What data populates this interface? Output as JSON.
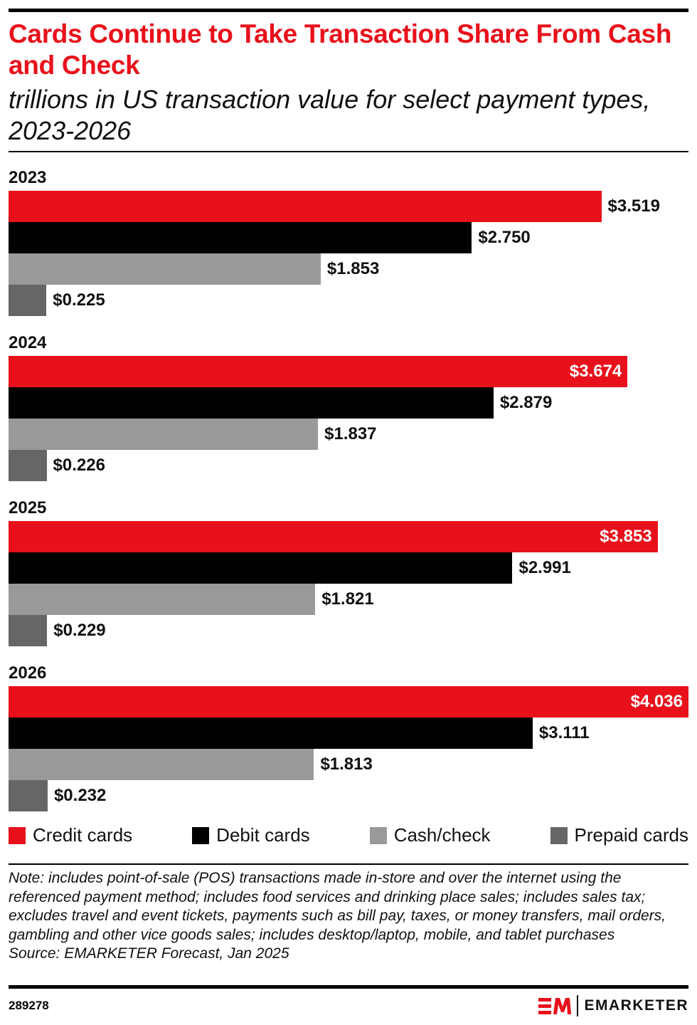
{
  "chart_data": {
    "type": "bar",
    "orientation": "horizontal",
    "title": "Cards Continue to Take Transaction Share From Cash and Check",
    "subtitle": "trillions in US transaction value for select payment types, 2023-2026",
    "categories": [
      "2023",
      "2024",
      "2025",
      "2026"
    ],
    "series": [
      {
        "name": "Credit cards",
        "color": "#e8111b",
        "values": [
          3.519,
          3.674,
          3.853,
          4.036
        ],
        "labels": [
          "$3.519",
          "$3.674",
          "$3.853",
          "$4.036"
        ]
      },
      {
        "name": "Debit cards",
        "color": "#000000",
        "values": [
          2.75,
          2.879,
          2.991,
          3.111
        ],
        "labels": [
          "$2.750",
          "$2.879",
          "$2.991",
          "$3.111"
        ]
      },
      {
        "name": "Cash/check",
        "color": "#999999",
        "values": [
          1.853,
          1.837,
          1.821,
          1.813
        ],
        "labels": [
          "$1.853",
          "$1.837",
          "$1.821",
          "$1.813"
        ]
      },
      {
        "name": "Prepaid cards",
        "color": "#666666",
        "values": [
          0.225,
          0.226,
          0.229,
          0.232
        ],
        "labels": [
          "$0.225",
          "$0.226",
          "$0.229",
          "$0.232"
        ]
      }
    ],
    "xlim": [
      0,
      4.036
    ],
    "grid": false,
    "legend": "bottom"
  },
  "note": "Note: includes point-of-sale (POS) transactions made in-store and over the internet using the referenced payment method; includes food services and drinking place sales; includes sales tax; excludes travel and event tickets, payments such as bill pay, taxes, or money transfers, mail orders, gambling and other vice goods sales; includes desktop/laptop, mobile, and tablet purchases",
  "source": "Source: EMARKETER Forecast, Jan 2025",
  "chart_id": "289278",
  "logo": {
    "text": "EMARKETER",
    "mark": "EM"
  }
}
